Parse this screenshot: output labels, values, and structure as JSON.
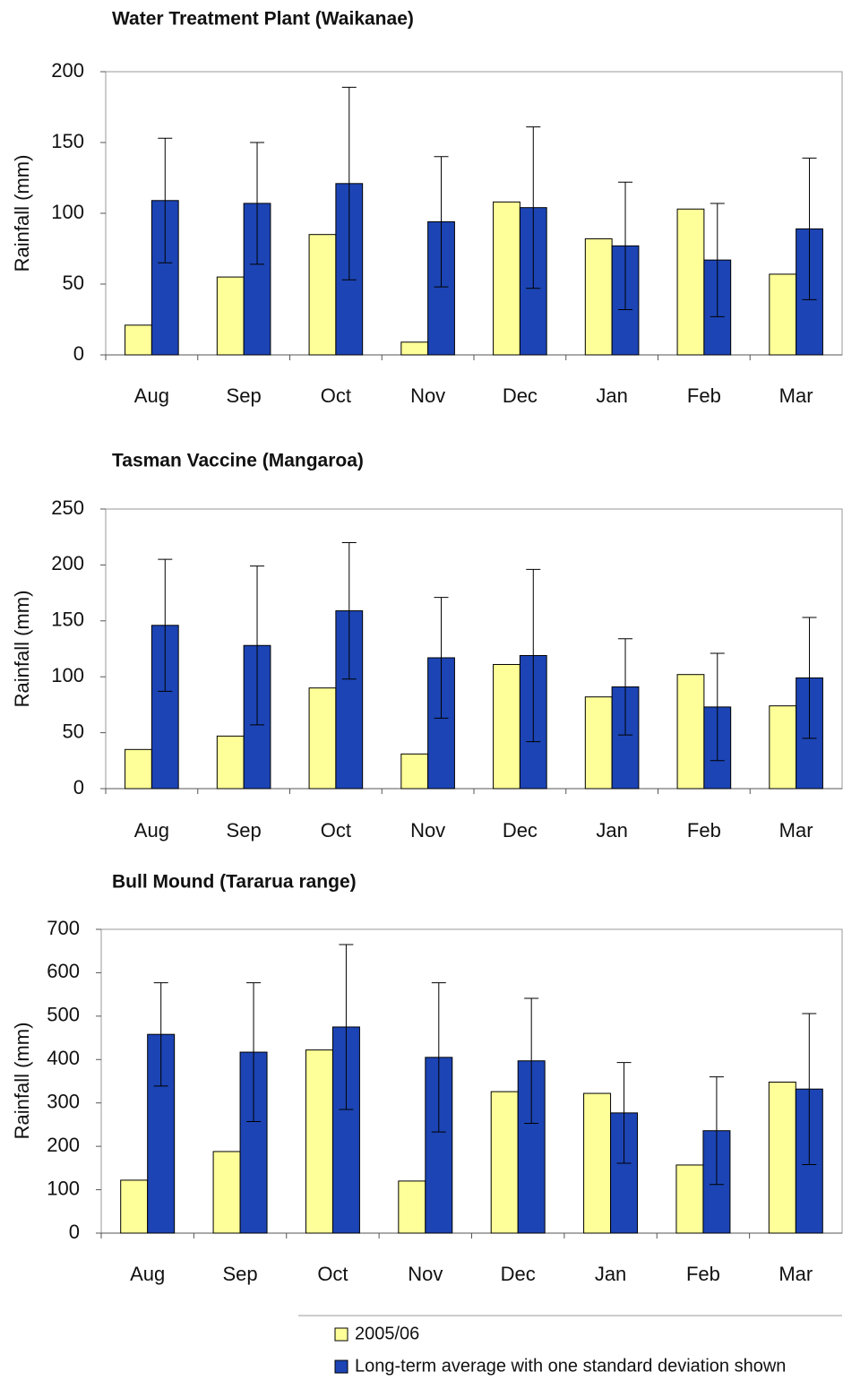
{
  "chart_data": [
    {
      "type": "bar",
      "title": "Water Treatment Plant (Waikanae)",
      "y_label": "Rainfall (mm)",
      "categories": [
        "Aug",
        "Sep",
        "Oct",
        "Nov",
        "Dec",
        "Jan",
        "Feb",
        "Mar"
      ],
      "ylim": [
        0,
        200
      ],
      "yticks": [
        0,
        50,
        100,
        150,
        200
      ],
      "series": [
        {
          "color": "#ffff99",
          "values": [
            21,
            55,
            85,
            9,
            108,
            82,
            103,
            57
          ]
        },
        {
          "color": "#1c44b4",
          "values": [
            109,
            107,
            121,
            94,
            104,
            77,
            67,
            89
          ],
          "errors": [
            44,
            43,
            68,
            46,
            57,
            45,
            40,
            50
          ]
        }
      ]
    },
    {
      "type": "bar",
      "title": "Tasman Vaccine (Mangaroa)",
      "y_label": "Rainfall (mm)",
      "categories": [
        "Aug",
        "Sep",
        "Oct",
        "Nov",
        "Dec",
        "Jan",
        "Feb",
        "Mar"
      ],
      "ylim": [
        0,
        250
      ],
      "yticks": [
        0,
        50,
        100,
        150,
        200,
        250
      ],
      "series": [
        {
          "color": "#ffff99",
          "values": [
            35,
            47,
            90,
            31,
            111,
            82,
            102,
            74
          ]
        },
        {
          "color": "#1c44b4",
          "values": [
            146,
            128,
            159,
            117,
            119,
            91,
            73,
            99
          ],
          "errors": [
            59,
            71,
            61,
            54,
            77,
            43,
            48,
            54
          ]
        }
      ]
    },
    {
      "type": "bar",
      "title": "Bull Mound (Tararua range)",
      "y_label": "Rainfall (mm)",
      "categories": [
        "Aug",
        "Sep",
        "Oct",
        "Nov",
        "Dec",
        "Jan",
        "Feb",
        "Mar"
      ],
      "ylim": [
        0,
        700
      ],
      "yticks": [
        0,
        100,
        200,
        300,
        400,
        500,
        600,
        700
      ],
      "series": [
        {
          "name": "2005/06",
          "color": "#ffff99",
          "values": [
            122,
            188,
            422,
            120,
            326,
            322,
            157,
            348
          ]
        },
        {
          "name": "Long-term average with one standard deviation shown",
          "color": "#1c44b4",
          "values": [
            458,
            417,
            475,
            405,
            397,
            277,
            236,
            332
          ],
          "errors": [
            119,
            160,
            190,
            172,
            144,
            116,
            124,
            174
          ]
        }
      ]
    }
  ]
}
